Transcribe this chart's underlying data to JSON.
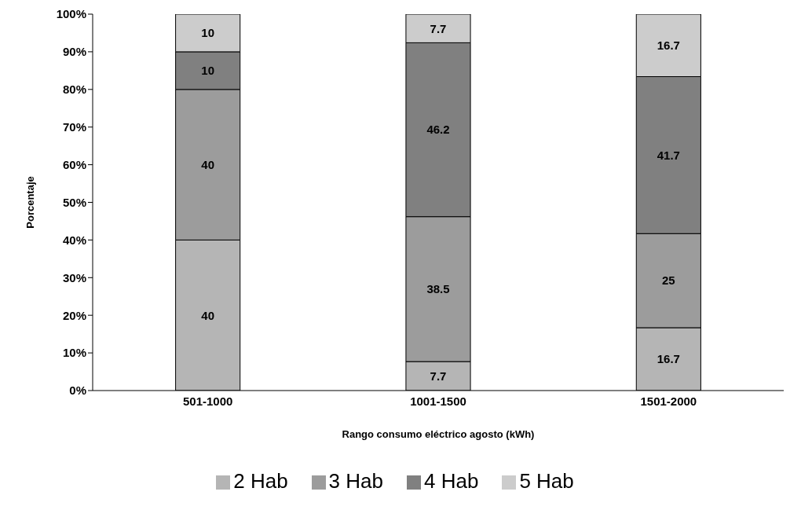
{
  "chart_data": {
    "type": "bar",
    "stacked": true,
    "xlabel": "Rango consumo eléctrico agosto (kWh)",
    "ylabel": "Porcentaje",
    "categories": [
      "501-1000",
      "1001-1500",
      "1501-2000"
    ],
    "series": [
      {
        "name": "2 Hab",
        "color": "#b5b5b5",
        "values": [
          40,
          7.7,
          16.7
        ]
      },
      {
        "name": "3 Hab",
        "color": "#9c9c9c",
        "values": [
          40,
          38.5,
          25
        ]
      },
      {
        "name": "4 Hab",
        "color": "#808080",
        "values": [
          10,
          46.2,
          41.7
        ]
      },
      {
        "name": "5 Hab",
        "color": "#cccccc",
        "values": [
          10,
          7.7,
          16.7
        ]
      }
    ],
    "ylim": [
      0,
      100
    ],
    "yticks": [
      {
        "value": 0,
        "label": "0%"
      },
      {
        "value": 10,
        "label": "10%"
      },
      {
        "value": 20,
        "label": "20%"
      },
      {
        "value": 30,
        "label": "30%"
      },
      {
        "value": 40,
        "label": "40%"
      },
      {
        "value": 50,
        "label": "50%"
      },
      {
        "value": 60,
        "label": "60%"
      },
      {
        "value": 70,
        "label": "70%"
      },
      {
        "value": 80,
        "label": "80%"
      },
      {
        "value": 90,
        "label": "90%"
      },
      {
        "value": 100,
        "label": "100%"
      }
    ],
    "data_labels": true,
    "legend": "bottom"
  }
}
